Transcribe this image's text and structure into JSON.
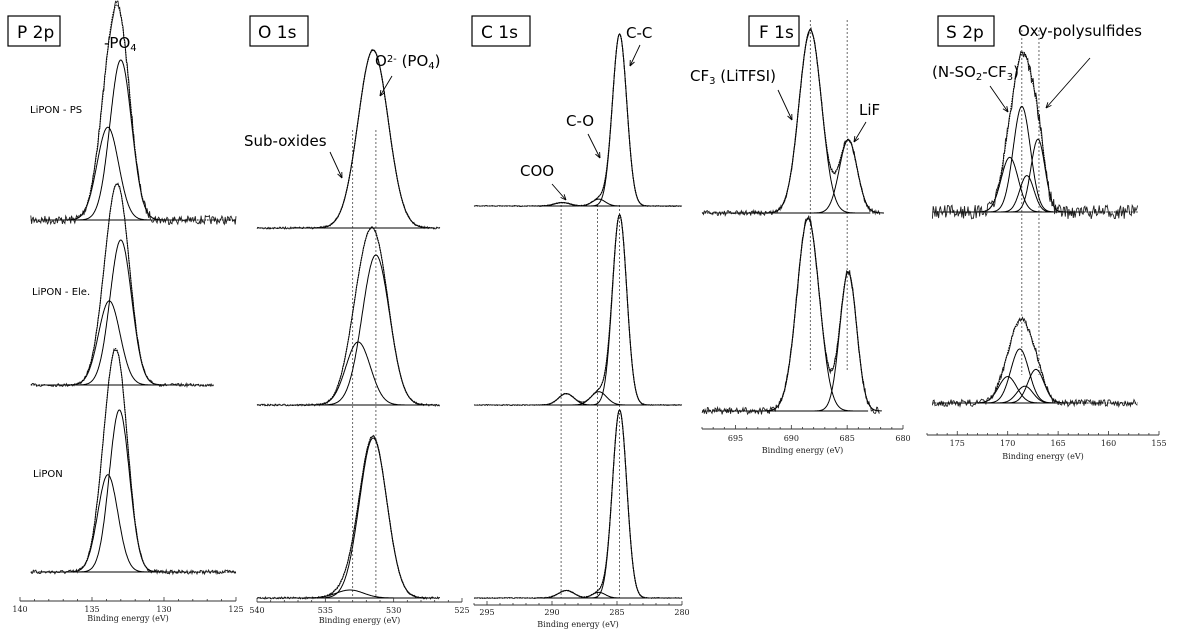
{
  "chart_data": [
    {
      "type": "line",
      "title": "P 2p",
      "xlabel": "Binding energy (eV)",
      "xlim": [
        140,
        125
      ],
      "xticks": [
        140,
        135,
        130,
        125
      ],
      "series": [
        {
          "name": "LiPON - PS",
          "peaks": [
            {
              "center": 133.0,
              "height": 1.0,
              "width": 0.75
            },
            {
              "center": 133.9,
              "height": 0.58,
              "width": 0.75
            }
          ]
        },
        {
          "name": "LiPON - Ele.",
          "peaks": [
            {
              "center": 133.0,
              "height": 1.0,
              "width": 0.75
            },
            {
              "center": 133.8,
              "height": 0.58,
              "width": 0.75
            }
          ]
        },
        {
          "name": "LiPON",
          "peaks": [
            {
              "center": 133.1,
              "height": 1.0,
              "width": 0.7
            },
            {
              "center": 133.9,
              "height": 0.6,
              "width": 0.7
            }
          ]
        }
      ],
      "annotations": [
        {
          "text": "-PO",
          "sub": "4",
          "at": 133.0
        }
      ]
    },
    {
      "type": "line",
      "title": "O 1s",
      "xlabel": "Binding energy (eV)",
      "xlim": [
        540,
        525
      ],
      "xticks": [
        540,
        535,
        530,
        525
      ],
      "reference_lines": [
        533.0,
        531.3
      ],
      "series": [
        {
          "peaks": [
            {
              "center": 531.5,
              "height": 1.0,
              "width": 1.1
            }
          ]
        },
        {
          "peaks": [
            {
              "center": 531.3,
              "height": 1.0,
              "width": 1.0
            },
            {
              "center": 532.6,
              "height": 0.42,
              "width": 0.9
            }
          ]
        },
        {
          "peaks": [
            {
              "center": 531.5,
              "height": 1.0,
              "width": 1.0
            },
            {
              "center": 533.2,
              "height": 0.05,
              "width": 1.0
            }
          ]
        }
      ],
      "annotations": [
        {
          "text": "Sub-oxides",
          "at": 533.0
        },
        {
          "text": "O",
          "sup": "2-",
          "after": " (PO",
          "sub": "4",
          "end": ")",
          "at": 531.3
        }
      ]
    },
    {
      "type": "line",
      "title": "C 1s",
      "xlabel": "Binding energy (eV)",
      "xlim": [
        296,
        280
      ],
      "xticks": [
        295,
        290,
        285,
        280
      ],
      "reference_lines": [
        289.3,
        286.5,
        284.8
      ],
      "series": [
        {
          "peaks": [
            {
              "center": 284.8,
              "height": 1.0,
              "width": 0.55
            },
            {
              "center": 286.4,
              "height": 0.04,
              "width": 0.5
            },
            {
              "center": 289.2,
              "height": 0.02,
              "width": 0.6
            }
          ]
        },
        {
          "peaks": [
            {
              "center": 284.8,
              "height": 1.0,
              "width": 0.55
            },
            {
              "center": 286.4,
              "height": 0.07,
              "width": 0.6
            },
            {
              "center": 288.9,
              "height": 0.06,
              "width": 0.6
            }
          ]
        },
        {
          "peaks": [
            {
              "center": 284.8,
              "height": 1.0,
              "width": 0.55
            },
            {
              "center": 286.4,
              "height": 0.03,
              "width": 0.5
            },
            {
              "center": 288.9,
              "height": 0.04,
              "width": 0.6
            }
          ]
        }
      ],
      "annotations": [
        {
          "text": "C-C",
          "at": 284.8
        },
        {
          "text": "C-O",
          "at": 286.4
        },
        {
          "text": "COO",
          "at": 289.2
        }
      ]
    },
    {
      "type": "line",
      "title": "F 1s",
      "xlabel": "Binding energy (eV)",
      "xlim": [
        698,
        680
      ],
      "xticks": [
        695,
        690,
        685,
        680
      ],
      "reference_lines": [
        688.3,
        685.0
      ],
      "series": [
        {
          "peaks": [
            {
              "center": 688.3,
              "height": 1.0,
              "width": 1.0
            },
            {
              "center": 684.9,
              "height": 0.4,
              "width": 0.8
            }
          ]
        },
        {
          "peaks": [
            {
              "center": 688.5,
              "height": 1.0,
              "width": 1.0
            },
            {
              "center": 684.9,
              "height": 0.72,
              "width": 0.75
            }
          ]
        }
      ],
      "annotations": [
        {
          "text": "CF",
          "sub": "3",
          "after": " (LiTFSI)",
          "at": 688.3
        },
        {
          "text": "LiF",
          "at": 684.9
        }
      ]
    },
    {
      "type": "line",
      "title": "S 2p",
      "xlabel": "Binding energy (eV)",
      "xlim": [
        178,
        155
      ],
      "xticks": [
        175,
        170,
        165,
        160,
        155
      ],
      "reference_lines": [
        168.6,
        166.9
      ],
      "series": [
        {
          "peaks": [
            {
              "center": 168.6,
              "height": 0.58,
              "width": 0.85
            },
            {
              "center": 169.8,
              "height": 0.3,
              "width": 0.85
            },
            {
              "center": 167.0,
              "height": 0.4,
              "width": 0.7
            },
            {
              "center": 168.1,
              "height": 0.2,
              "width": 0.7
            }
          ]
        },
        {
          "peaks": [
            {
              "center": 168.8,
              "height": 0.45,
              "width": 0.9
            },
            {
              "center": 170.0,
              "height": 0.22,
              "width": 0.9
            },
            {
              "center": 167.2,
              "height": 0.28,
              "width": 0.8
            },
            {
              "center": 168.3,
              "height": 0.14,
              "width": 0.8
            }
          ]
        }
      ],
      "annotations": [
        {
          "text": "Oxy-polysulfides",
          "at": 166.9
        },
        {
          "text": "(N-SO",
          "sub": "2",
          "after": "-CF",
          "sub2": "3",
          "end": ")",
          "at": 168.6
        }
      ]
    }
  ]
}
